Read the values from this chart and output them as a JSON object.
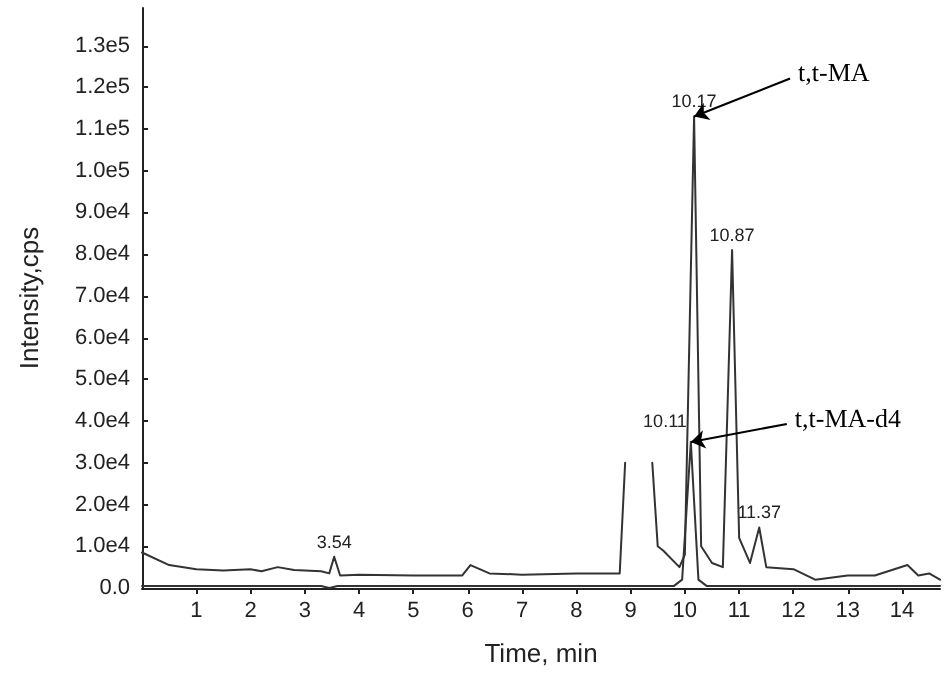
{
  "chart_data": {
    "type": "line",
    "xlabel": "Time, min",
    "ylabel": "Intensity,cps",
    "xlim": [
      0,
      14.7
    ],
    "xticks": [
      1,
      2,
      3,
      4,
      5,
      6,
      7,
      8,
      9,
      10,
      11,
      12,
      13,
      14
    ],
    "ylim": [
      0,
      139000
    ],
    "yticks": [
      {
        "value": 0,
        "label": "0.0"
      },
      {
        "value": 10000,
        "label": "1.0e4"
      },
      {
        "value": 20000,
        "label": "2.0e4"
      },
      {
        "value": 30000,
        "label": "3.0e4"
      },
      {
        "value": 40000,
        "label": "4.0e4"
      },
      {
        "value": 50000,
        "label": "5.0e4"
      },
      {
        "value": 60000,
        "label": "6.0e4"
      },
      {
        "value": 70000,
        "label": "7.0e4"
      },
      {
        "value": 80000,
        "label": "8.0e4"
      },
      {
        "value": 90000,
        "label": "9.0e4"
      },
      {
        "value": 100000,
        "label": "1.0e5"
      },
      {
        "value": 110000,
        "label": "1.1e5"
      },
      {
        "value": 120000,
        "label": "1.2e5"
      },
      {
        "value": 130000,
        "label": "1.3e5"
      }
    ],
    "grid": false,
    "marker": "none",
    "line_style": "solid",
    "series": [
      {
        "color": "#333333",
        "x": [
          0,
          0.5,
          1,
          1.5,
          2,
          2.2,
          2.5,
          2.8,
          3.3,
          3.45,
          3.54,
          3.65,
          4,
          5,
          5.9,
          6.05,
          6.4,
          7,
          8,
          8.8,
          8.9,
          9,
          9.3,
          9.4,
          9.5,
          9.6,
          9.9,
          10,
          10.17,
          10.3,
          10.5,
          10.7,
          10.87,
          11,
          11.2,
          11.37,
          11.5,
          12,
          12.4,
          13,
          13.5,
          14.1,
          14.3,
          14.5,
          14.7
        ],
        "values": [
          8500,
          5500,
          4500,
          4200,
          4500,
          4000,
          5000,
          4300,
          4000,
          3500,
          7500,
          3000,
          3200,
          3000,
          3000,
          5500,
          3500,
          3200,
          3500,
          3500,
          30000,
          null,
          null,
          30000,
          10000,
          9000,
          5000,
          8000,
          113000,
          10000,
          6000,
          5000,
          81000,
          12000,
          6000,
          14500,
          5000,
          4500,
          2000,
          3000,
          3000,
          5500,
          3000,
          3500,
          2000
        ]
      },
      {
        "color": "#333333",
        "x": [
          0,
          3.3,
          3.45,
          3.6,
          9.8,
          9.95,
          10.11,
          10.25,
          10.4,
          14.7
        ],
        "values": [
          500,
          500,
          0,
          500,
          500,
          2000,
          35000,
          2000,
          500,
          500
        ]
      }
    ],
    "annotations": [
      {
        "text": "3.54",
        "x": 3.54,
        "y": 7500
      },
      {
        "text": "10.17",
        "x": 10.17,
        "y": 113000
      },
      {
        "text": "10.87",
        "x": 10.87,
        "y": 81000
      },
      {
        "text": "11.37",
        "x": 11.37,
        "y": 14500
      },
      {
        "text": "10.11",
        "x": 10.11,
        "y": 35000
      },
      {
        "text": "t,t-MA",
        "x": 10.17,
        "y": 113000
      },
      {
        "text": "t,t-MA-d4",
        "x": 10.11,
        "y": 35000
      }
    ]
  }
}
